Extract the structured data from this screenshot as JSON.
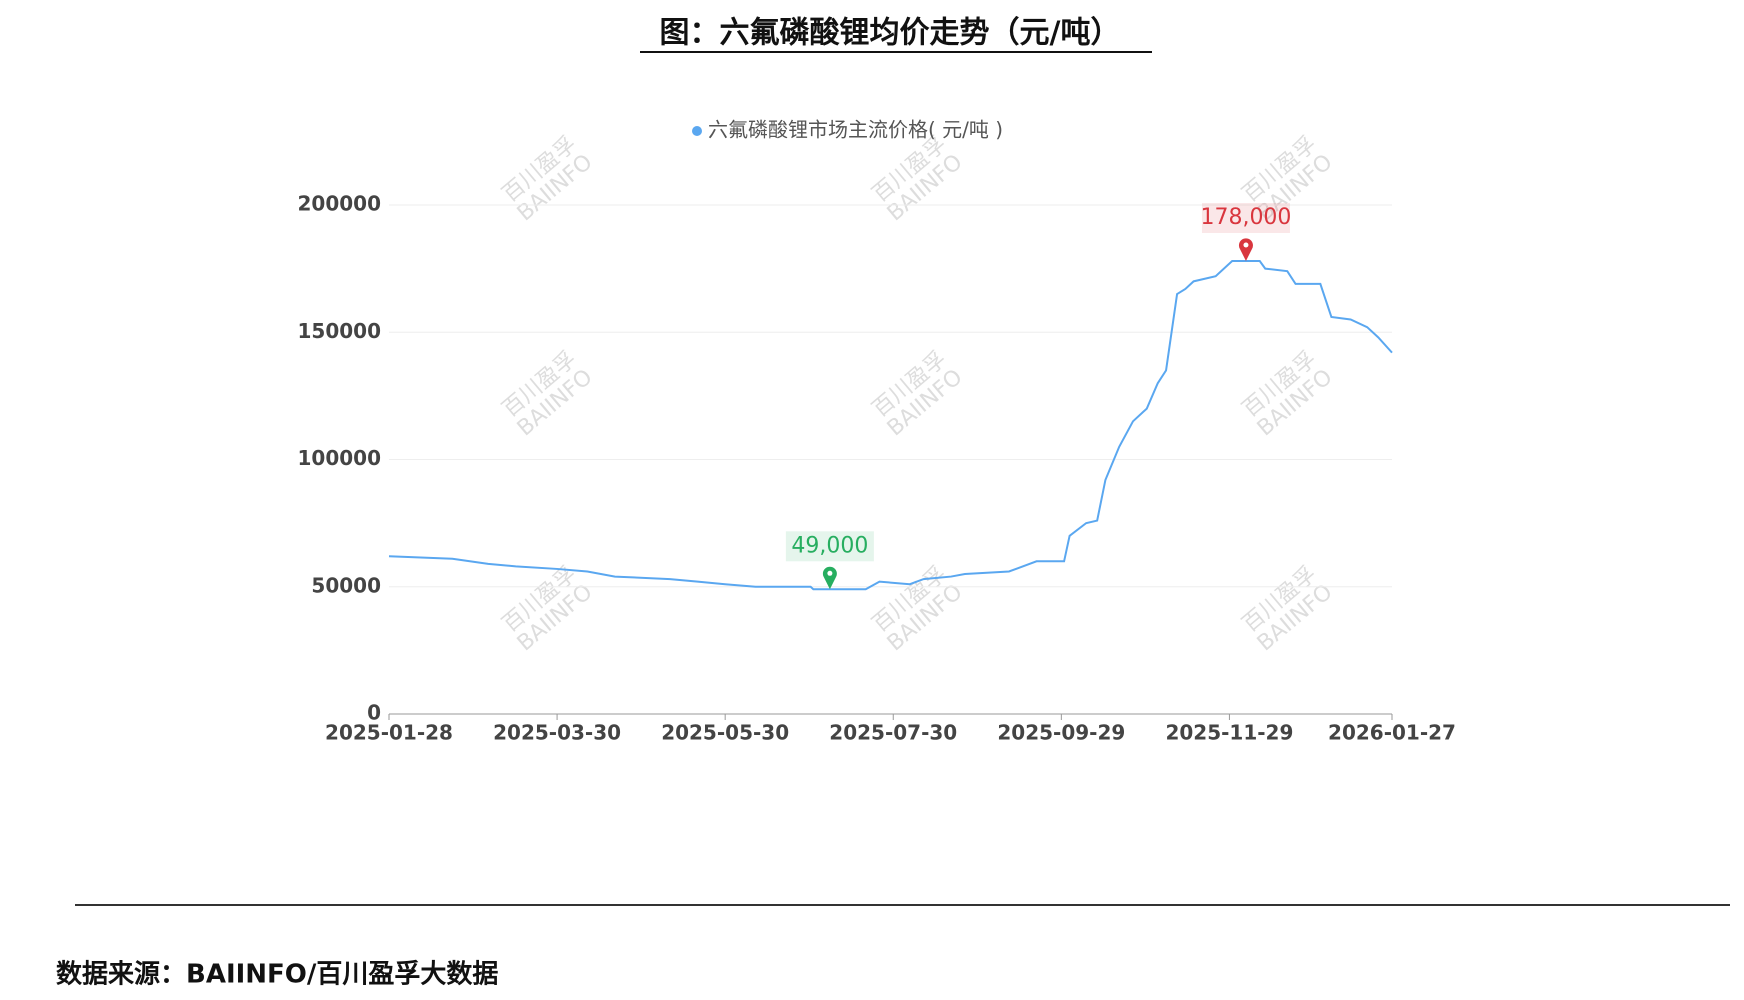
{
  "chart_data": {
    "type": "line",
    "title": "图：六氟磷酸锂均价走势（元/吨）",
    "source": "数据来源：BAIINFO/百川盈孚大数据",
    "watermark": [
      "百川盈孚",
      "BAIINFO"
    ],
    "series": [
      {
        "name": "六氟磷酸锂市场主流价格( 元/吨 )",
        "color": "#5aa7f0",
        "x": [
          "2025-01-28",
          "2025-02-20",
          "2025-03-05",
          "2025-03-15",
          "2025-03-30",
          "2025-04-10",
          "2025-04-20",
          "2025-05-10",
          "2025-05-20",
          "2025-05-30",
          "2025-06-10",
          "2025-06-30",
          "2025-07-01",
          "2025-07-20",
          "2025-07-25",
          "2025-08-05",
          "2025-08-10",
          "2025-08-20",
          "2025-08-25",
          "2025-09-10",
          "2025-09-20",
          "2025-09-30",
          "2025-10-02",
          "2025-10-08",
          "2025-10-12",
          "2025-10-15",
          "2025-10-20",
          "2025-10-25",
          "2025-10-30",
          "2025-11-03",
          "2025-11-06",
          "2025-11-10",
          "2025-11-13",
          "2025-11-16",
          "2025-11-24",
          "2025-11-30",
          "2025-12-10",
          "2025-12-12",
          "2025-12-20",
          "2025-12-23",
          "2026-01-01",
          "2026-01-05",
          "2026-01-12",
          "2026-01-18",
          "2026-01-22",
          "2026-01-27"
        ],
        "values": [
          62000,
          61000,
          59000,
          58000,
          57000,
          56000,
          54000,
          53000,
          52000,
          51000,
          50000,
          50000,
          49000,
          49000,
          52000,
          51000,
          53000,
          54000,
          55000,
          56000,
          60000,
          60000,
          70000,
          75000,
          76000,
          92000,
          105000,
          115000,
          120000,
          130000,
          135000,
          165000,
          167000,
          170000,
          172000,
          178000,
          178000,
          175000,
          174000,
          169000,
          169000,
          156000,
          155000,
          152000,
          148000,
          142000
        ]
      }
    ],
    "markers": [
      {
        "x": "2025-12-05",
        "value": 178000,
        "label": "178,000",
        "color": "#d9363e"
      },
      {
        "x": "2025-07-07",
        "value": 49000,
        "label": "49,000",
        "color": "#27ae60"
      }
    ],
    "xlim": [
      "2025-01-28",
      "2026-01-27"
    ],
    "xticks": [
      "2025-01-28",
      "2025-03-30",
      "2025-05-30",
      "2025-07-30",
      "2025-09-29",
      "2025-11-29",
      "2026-01-27"
    ],
    "ylim": [
      0,
      200000
    ],
    "yticks": [
      0,
      50000,
      100000,
      150000,
      200000
    ],
    "grid": true
  }
}
